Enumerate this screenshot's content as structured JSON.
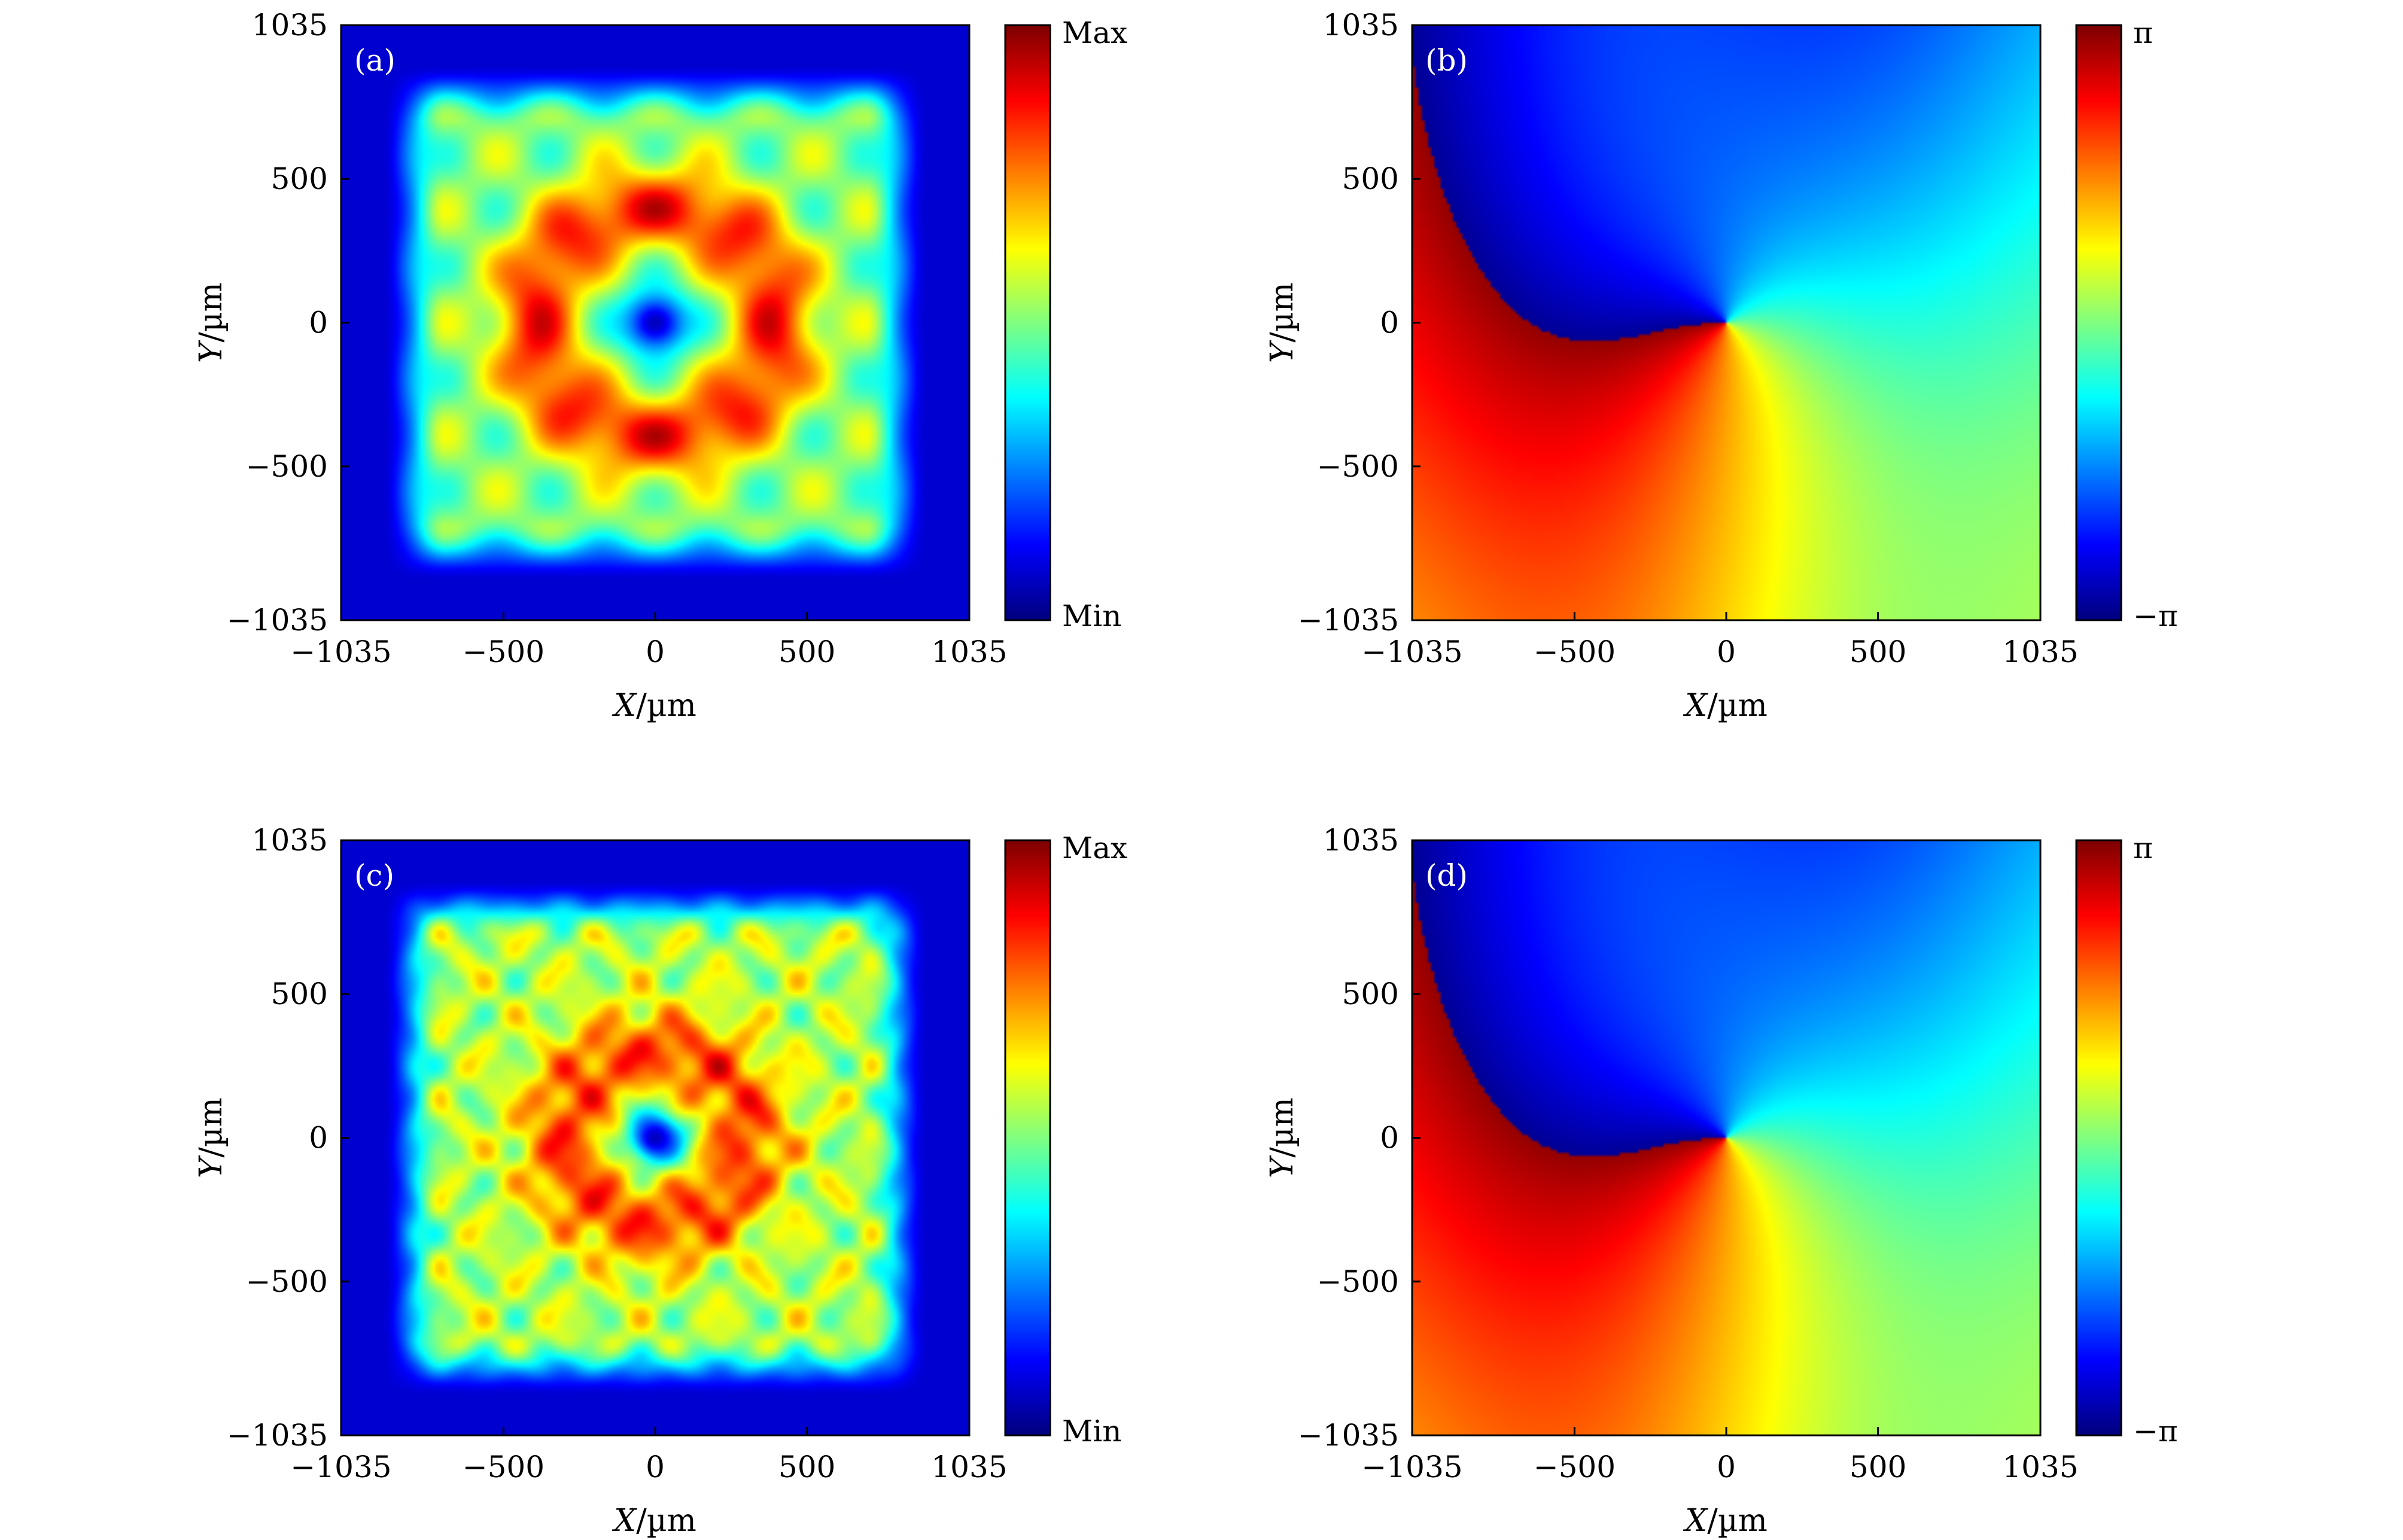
{
  "chart_data": [
    {
      "type": "heatmap",
      "panel_label": "(a)",
      "quantity": "intensity",
      "xlabel_var": "X",
      "xlabel_unit": "/µm",
      "ylabel_var": "Y",
      "ylabel_unit": "/µm",
      "xlim": [
        -1035,
        1035
      ],
      "ylim": [
        -1035,
        1035
      ],
      "xticks": [
        -1035,
        -500,
        0,
        500,
        1035
      ],
      "yticks": [
        -1035,
        -500,
        0,
        500,
        1035
      ],
      "xtick_labels": [
        "−1035",
        "−500",
        "0",
        "500",
        "1035"
      ],
      "ytick_labels": [
        "−1035",
        "−500",
        "0",
        "500",
        "1035"
      ],
      "colorbar": {
        "colormap": "jet",
        "max_label": "Max",
        "min_label": "Min"
      },
      "features": {
        "pattern": "ring",
        "center": [
          0,
          0
        ],
        "ring_radius": 400,
        "frame_half_width": 780
      }
    },
    {
      "type": "heatmap",
      "panel_label": "(b)",
      "quantity": "phase",
      "xlabel_var": "X",
      "xlabel_unit": "/µm",
      "ylabel_var": "Y",
      "ylabel_unit": "/µm",
      "xlim": [
        -1035,
        1035
      ],
      "ylim": [
        -1035,
        1035
      ],
      "xticks": [
        -1035,
        -500,
        0,
        500,
        1035
      ],
      "yticks": [
        -1035,
        -500,
        0,
        500,
        1035
      ],
      "xtick_labels": [
        "−1035",
        "−500",
        "0",
        "500",
        "1035"
      ],
      "ytick_labels": [
        "−1035",
        "−500",
        "0",
        "500",
        "1035"
      ],
      "colorbar": {
        "colormap": "jet",
        "max_label": "π",
        "min_label": "−π"
      },
      "features": {
        "pattern": "vortex",
        "singularity": [
          0,
          0
        ],
        "topological_charge": 1
      }
    },
    {
      "type": "heatmap",
      "panel_label": "(c)",
      "quantity": "intensity",
      "xlabel_var": "X",
      "xlabel_unit": "/µm",
      "ylabel_var": "Y",
      "ylabel_unit": "/µm",
      "xlim": [
        -1035,
        1035
      ],
      "ylim": [
        -1035,
        1035
      ],
      "xticks": [
        -1035,
        -500,
        0,
        500,
        1035
      ],
      "yticks": [
        -1035,
        -500,
        0,
        500,
        1035
      ],
      "xtick_labels": [
        "−1035",
        "−500",
        "0",
        "500",
        "1035"
      ],
      "ytick_labels": [
        "−1035",
        "−500",
        "0",
        "500",
        "1035"
      ],
      "colorbar": {
        "colormap": "jet",
        "max_label": "Max",
        "min_label": "Min"
      },
      "features": {
        "pattern": "speckled-ring",
        "center": [
          0,
          0
        ],
        "ring_radius": 300,
        "frame_half_width": 780
      }
    },
    {
      "type": "heatmap",
      "panel_label": "(d)",
      "quantity": "phase",
      "xlabel_var": "X",
      "xlabel_unit": "/µm",
      "ylabel_var": "Y",
      "ylabel_unit": "/µm",
      "xlim": [
        -1035,
        1035
      ],
      "ylim": [
        -1035,
        1035
      ],
      "xticks": [
        -1035,
        -500,
        0,
        500,
        1035
      ],
      "yticks": [
        -1035,
        -500,
        0,
        500,
        1035
      ],
      "xtick_labels": [
        "−1035",
        "−500",
        "0",
        "500",
        "1035"
      ],
      "ytick_labels": [
        "−1035",
        "−500",
        "0",
        "500",
        "1035"
      ],
      "colorbar": {
        "colormap": "jet",
        "max_label": "π",
        "min_label": "−π"
      },
      "features": {
        "pattern": "vortex",
        "singularity": [
          0,
          0
        ],
        "topological_charge": 1
      }
    }
  ]
}
